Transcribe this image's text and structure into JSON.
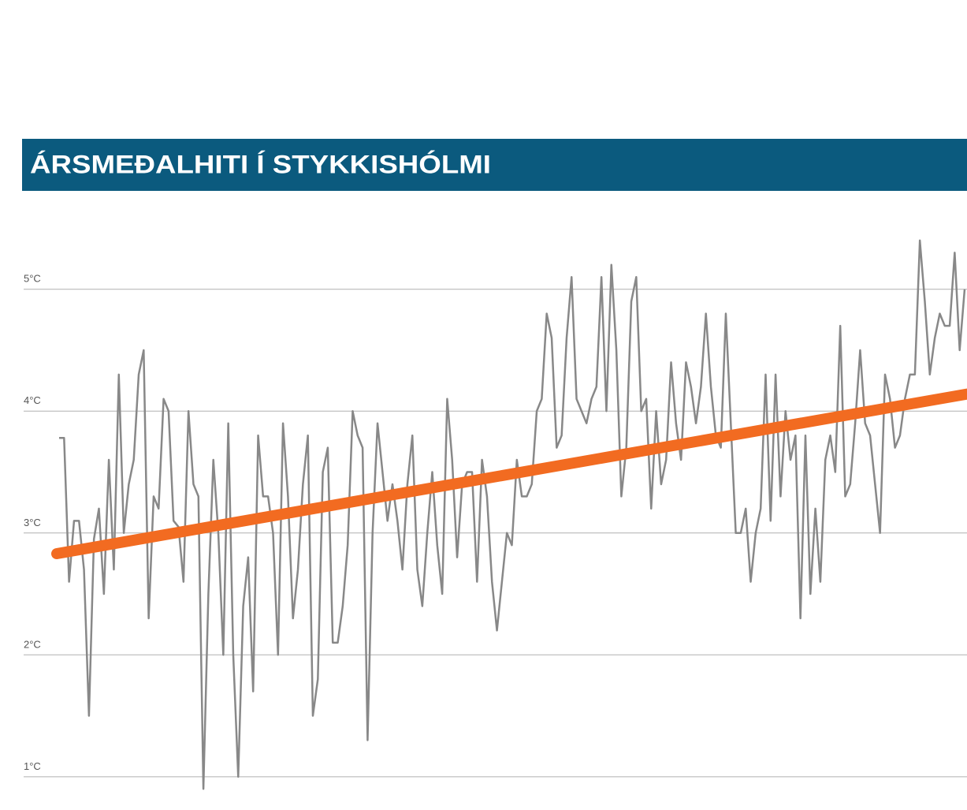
{
  "chart_data": {
    "type": "line",
    "title": "ÁRSMEÐALHITI Í STYKKISHÓLMI",
    "ylim": [
      0.85,
      5.6
    ],
    "yticks": [
      {
        "value": 1,
        "label": "1°C"
      },
      {
        "value": 2,
        "label": "2°C"
      },
      {
        "value": 3,
        "label": "3°C"
      },
      {
        "value": 4,
        "label": "4°C"
      },
      {
        "value": 5,
        "label": "5°C"
      }
    ],
    "grid": true,
    "series": [
      {
        "color": "#888888",
        "values": [
          3.78,
          3.78,
          2.6,
          3.1,
          3.1,
          2.7,
          1.5,
          2.95,
          3.2,
          2.5,
          3.6,
          2.7,
          4.3,
          3.0,
          3.4,
          3.6,
          4.3,
          4.5,
          2.3,
          3.3,
          3.2,
          4.1,
          4.0,
          3.1,
          3.05,
          2.6,
          4.0,
          3.4,
          3.3,
          0.9,
          2.5,
          3.6,
          3.0,
          2.0,
          3.9,
          2.0,
          1.0,
          2.4,
          2.8,
          1.7,
          3.8,
          3.3,
          3.3,
          3.0,
          2.0,
          3.9,
          3.3,
          2.3,
          2.7,
          3.4,
          3.8,
          1.5,
          1.8,
          3.5,
          3.7,
          2.1,
          2.1,
          2.4,
          2.9,
          4.0,
          3.8,
          3.7,
          1.3,
          3.0,
          3.9,
          3.5,
          3.1,
          3.4,
          3.1,
          2.7,
          3.4,
          3.8,
          2.7,
          2.4,
          3.0,
          3.5,
          2.9,
          2.5,
          4.1,
          3.6,
          2.8,
          3.4,
          3.5,
          3.5,
          2.6,
          3.6,
          3.3,
          2.6,
          2.2,
          2.6,
          3.0,
          2.9,
          3.6,
          3.3,
          3.3,
          3.4,
          4.0,
          4.1,
          4.8,
          4.6,
          3.7,
          3.8,
          4.6,
          5.1,
          4.1,
          4.0,
          3.9,
          4.1,
          4.2,
          5.1,
          4.0,
          5.2,
          4.5,
          3.3,
          3.7,
          4.9,
          5.1,
          4.0,
          4.1,
          3.2,
          4.0,
          3.4,
          3.6,
          4.4,
          3.9,
          3.6,
          4.4,
          4.2,
          3.9,
          4.2,
          4.8,
          4.2,
          3.8,
          3.7,
          4.8,
          3.9,
          3.0,
          3.0,
          3.2,
          2.6,
          3.0,
          3.2,
          4.3,
          3.1,
          4.3,
          3.3,
          4.0,
          3.6,
          3.8,
          2.3,
          3.8,
          2.5,
          3.2,
          2.6,
          3.6,
          3.8,
          3.5,
          4.7,
          3.3,
          3.4,
          3.9,
          4.5,
          3.9,
          3.8,
          3.4,
          3.0,
          4.3,
          4.1,
          3.7,
          3.8,
          4.1,
          4.3,
          4.3,
          5.4,
          4.9,
          4.3,
          4.6,
          4.8,
          4.7,
          4.7,
          5.3,
          4.5,
          5.0
        ]
      }
    ],
    "trendline": {
      "color": "#f26b21",
      "values": [
        2.83,
        4.14
      ]
    }
  }
}
